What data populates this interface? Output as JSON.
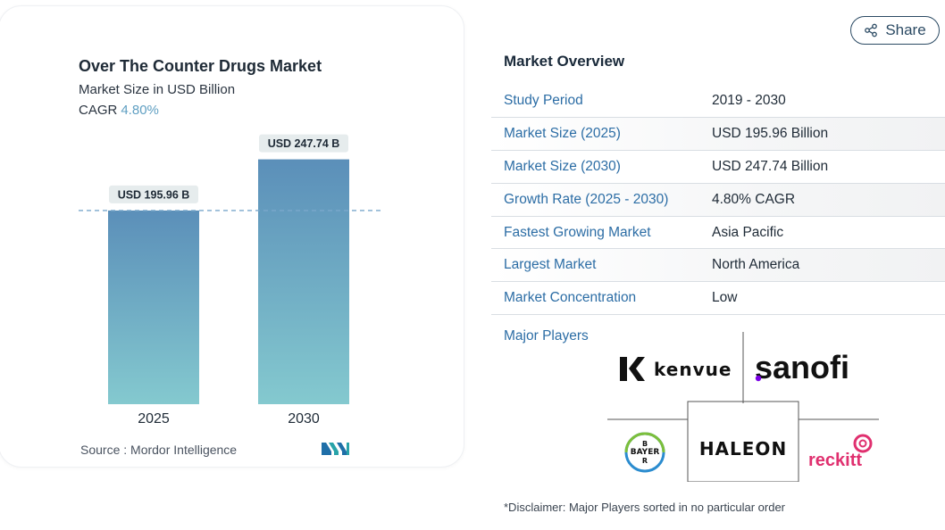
{
  "chart": {
    "title": "Over The Counter Drugs Market",
    "subtitle": "Market Size in USD Billion",
    "cagr_label": "CAGR",
    "cagr_value": "4.80%",
    "source": "Source :  Mordor Intelligence",
    "logo_name": "mordor-intelligence-logo"
  },
  "chart_data": {
    "type": "bar",
    "categories": [
      "2025",
      "2030"
    ],
    "values": [
      195.96,
      247.74
    ],
    "data_labels": [
      "USD 195.96 B",
      "USD 247.74 B"
    ],
    "title": "Over The Counter Drugs Market",
    "subtitle": "Market Size in USD Billion",
    "ylim": [
      0,
      260
    ],
    "grid": false,
    "reference_line_at": 195.96,
    "colors": {
      "bar_top": "#5b8fb9",
      "bar_bottom": "#84c9cf",
      "label_bg": "#e6eced",
      "ref_line": "#7aa8cc"
    }
  },
  "share": {
    "label": "Share",
    "icon": "share-icon"
  },
  "overview": {
    "title": "Market Overview",
    "rows": [
      {
        "label": "Study Period",
        "value": "2019 - 2030"
      },
      {
        "label": "Market Size (2025)",
        "value": "USD 195.96 Billion"
      },
      {
        "label": "Market Size (2030)",
        "value": "USD 247.74 Billion"
      },
      {
        "label": "Growth Rate (2025 - 2030)",
        "value": "4.80% CAGR"
      },
      {
        "label": "Fastest Growing Market",
        "value": "Asia Pacific"
      },
      {
        "label": "Largest Market",
        "value": "North America"
      },
      {
        "label": "Market Concentration",
        "value": "Low"
      }
    ]
  },
  "major_players": {
    "label": "Major Players",
    "logos": [
      {
        "name": "kenvue",
        "text": "kenvue"
      },
      {
        "name": "sanofi",
        "text": "sanofi"
      },
      {
        "name": "bayer",
        "text": "BAYER"
      },
      {
        "name": "haleon",
        "text": "HALEON"
      },
      {
        "name": "reckitt",
        "text": "reckitt"
      }
    ]
  },
  "disclaimer": "*Disclaimer: Major Players sorted in no particular order"
}
